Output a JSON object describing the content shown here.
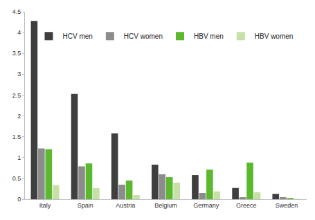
{
  "chart_data": {
    "type": "bar",
    "categories": [
      "Italy",
      "Spain",
      "Austria",
      "Belgium",
      "Germany",
      "Greece",
      "Sweden"
    ],
    "series": [
      {
        "name": "HCV men",
        "color": "#3f3f3f",
        "values": [
          4.28,
          2.53,
          1.58,
          0.83,
          0.58,
          0.27,
          0.13
        ]
      },
      {
        "name": "HCV women",
        "color": "#8c8c8c",
        "values": [
          1.22,
          0.79,
          0.35,
          0.6,
          0.15,
          0.05,
          0.05
        ]
      },
      {
        "name": "HBV men",
        "color": "#5cb82e",
        "values": [
          1.2,
          0.86,
          0.45,
          0.53,
          0.71,
          0.88,
          0.03
        ]
      },
      {
        "name": "HBV women",
        "color": "#c6e0a8",
        "values": [
          0.34,
          0.27,
          0.1,
          0.4,
          0.19,
          0.17,
          0.01
        ]
      }
    ],
    "ylim": [
      0,
      4.5
    ],
    "yticks": [
      0,
      0.5,
      1,
      1.5,
      2,
      2.5,
      3,
      3.5,
      4,
      4.5
    ],
    "grid": false,
    "legend": "top"
  }
}
